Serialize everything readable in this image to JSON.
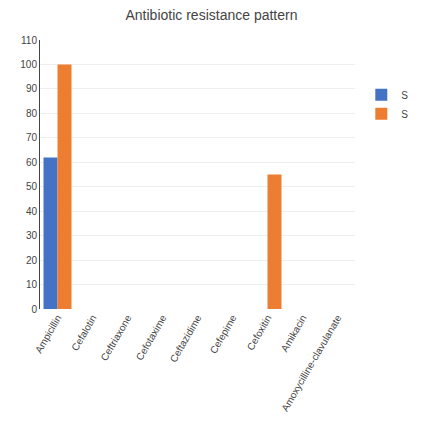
{
  "chart_data": {
    "type": "bar",
    "title": "Antibiotic resistance pattern",
    "categories": [
      "Ampicillin",
      "Cefalotin",
      "Ceftriaxone",
      "Cefotaxime",
      "Ceftazidime",
      "Cefepime",
      "Cefoxitin",
      "Amikacin",
      "Amoxycilline-clavulanate"
    ],
    "series": [
      {
        "name": "S",
        "color": "#4472C4",
        "values": [
          62,
          0,
          0,
          0,
          0,
          0,
          0,
          0,
          0
        ]
      },
      {
        "name": "S",
        "color": "#ED7D31",
        "values": [
          100,
          0,
          0,
          0,
          0,
          0,
          55,
          0,
          0
        ]
      }
    ],
    "ylim": [
      0,
      110
    ],
    "yticks": [
      0,
      10,
      20,
      30,
      40,
      50,
      60,
      70,
      80,
      90,
      100,
      110
    ],
    "grid": true,
    "legend": "right"
  }
}
